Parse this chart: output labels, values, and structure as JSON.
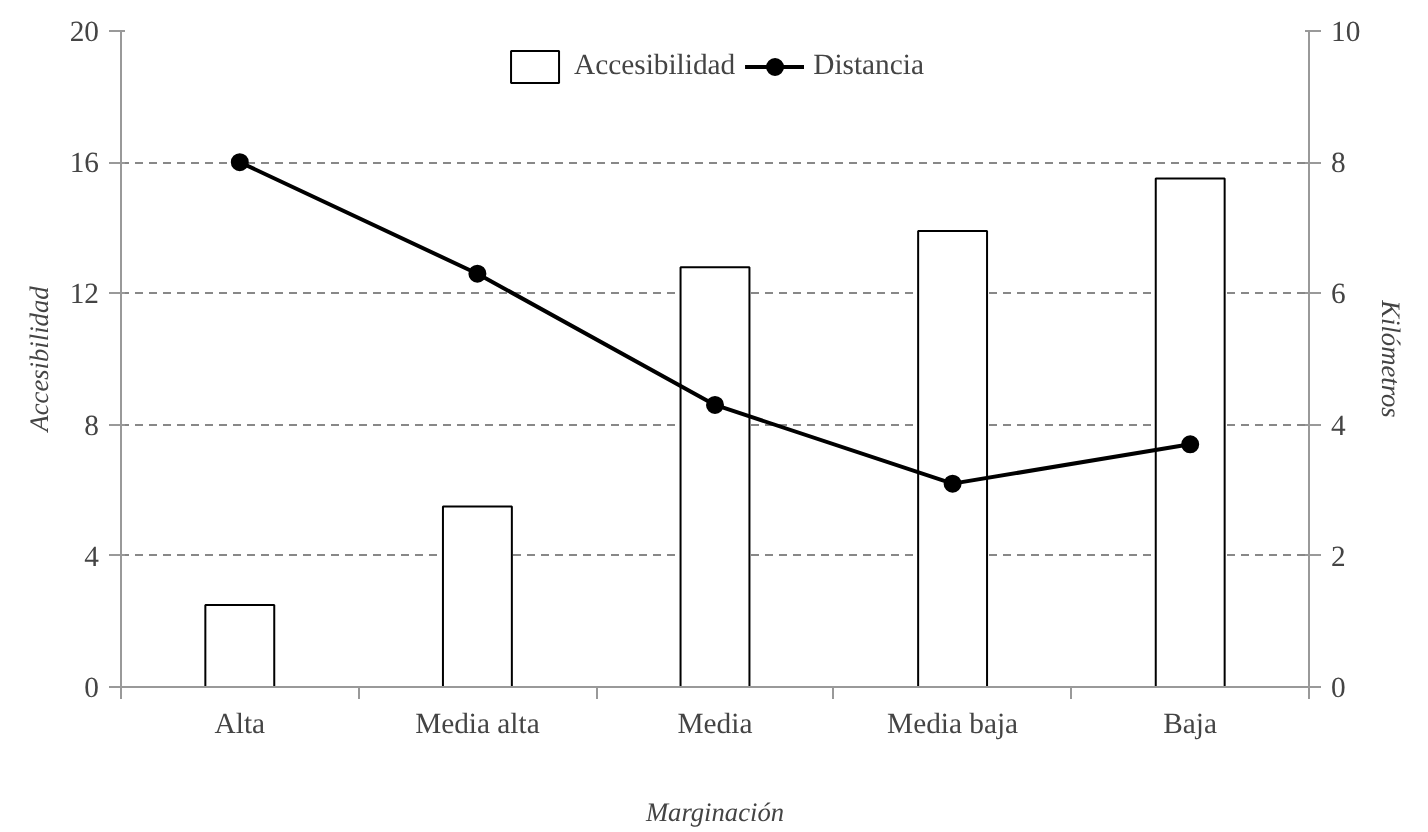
{
  "chart_data": {
    "type": "bar",
    "categories": [
      "Alta",
      "Media alta",
      "Media",
      "Media baja",
      "Baja"
    ],
    "series": [
      {
        "name": "Accesibilidad",
        "color": "#ffffff",
        "values": [
          2.5,
          5.5,
          12.8,
          13.9,
          15.5
        ]
      },
      {
        "name": "Distancia",
        "type": "line",
        "axis": "y2",
        "color": "#000000",
        "marker": "circle",
        "values": [
          8.0,
          6.3,
          4.3,
          3.1,
          3.7
        ]
      }
    ],
    "xlabel": "Marginación",
    "ylabel": "Accesibilidad",
    "y2label": "Kilómetros",
    "ylim": [
      0,
      20
    ],
    "yticks": [
      0,
      4,
      8,
      12,
      16,
      20
    ],
    "y2lim": [
      0,
      10
    ],
    "y2ticks": [
      0,
      2,
      4,
      6,
      8,
      10
    ],
    "grid": "y",
    "legend": "top"
  }
}
